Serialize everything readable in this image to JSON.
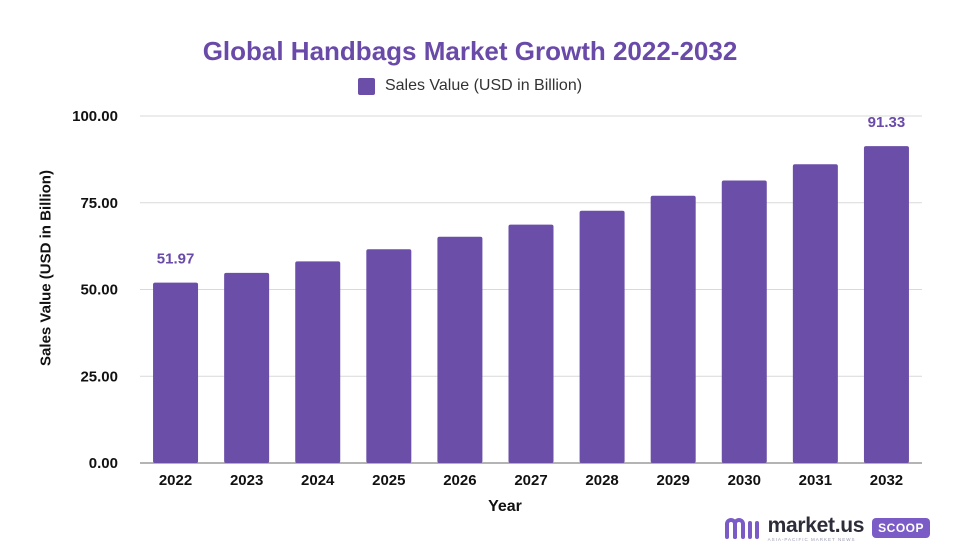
{
  "chart_data": {
    "type": "bar",
    "title": "Global Handbags Market Growth 2022-2032",
    "xlabel": "Year",
    "ylabel": "Sales Value (USD in Billion)",
    "categories": [
      "2022",
      "2023",
      "2024",
      "2025",
      "2026",
      "2027",
      "2028",
      "2029",
      "2030",
      "2031",
      "2032"
    ],
    "series": [
      {
        "name": "Sales Value (USD in Billion)",
        "values": [
          51.97,
          54.8,
          58.1,
          61.6,
          65.2,
          68.7,
          72.7,
          77.0,
          81.4,
          86.1,
          91.33
        ],
        "color": "#6b4ea8"
      }
    ],
    "data_labels": [
      {
        "category": "2022",
        "text": "51.97"
      },
      {
        "category": "2032",
        "text": "91.33"
      }
    ],
    "yticks": [
      "0.00",
      "25.00",
      "50.00",
      "75.00",
      "100.00"
    ],
    "ylim": [
      0,
      100
    ],
    "grid": true,
    "legend": "top-center",
    "label_color": "#6a4aa9",
    "grid_color": "#d9d9d9"
  },
  "brand": {
    "name": "market.us",
    "tagline": "ASIA-PACIFIC MARKET NEWS",
    "badge": "SCOOP",
    "accent": "#7b5cc7"
  }
}
